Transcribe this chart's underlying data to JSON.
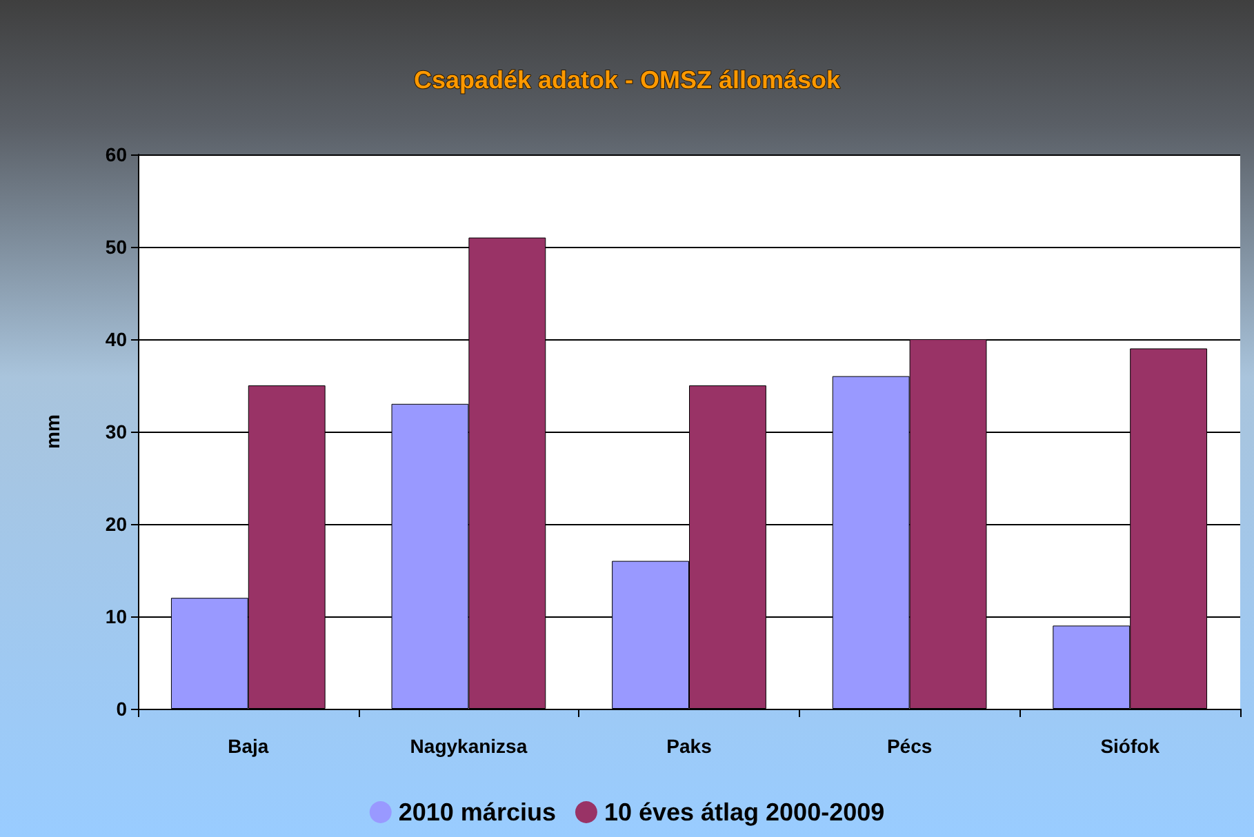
{
  "chart_data": {
    "type": "bar",
    "title": "Csapadék adatok - OMSZ állomások",
    "ylabel": "mm",
    "categories": [
      "Baja",
      "Nagykanizsa",
      "Paks",
      "Pécs",
      "Siófok"
    ],
    "series": [
      {
        "name": "2010 március",
        "color": "#9999ff",
        "values": [
          12,
          33,
          16,
          36,
          9
        ]
      },
      {
        "name": "10 éves átlag 2000-2009",
        "color": "#993366",
        "values": [
          35,
          51,
          35,
          40,
          39
        ]
      }
    ],
    "ylim": [
      0,
      60
    ],
    "yticks": [
      0,
      10,
      20,
      30,
      40,
      50,
      60
    ],
    "grid": "y",
    "legend": "bottom"
  }
}
